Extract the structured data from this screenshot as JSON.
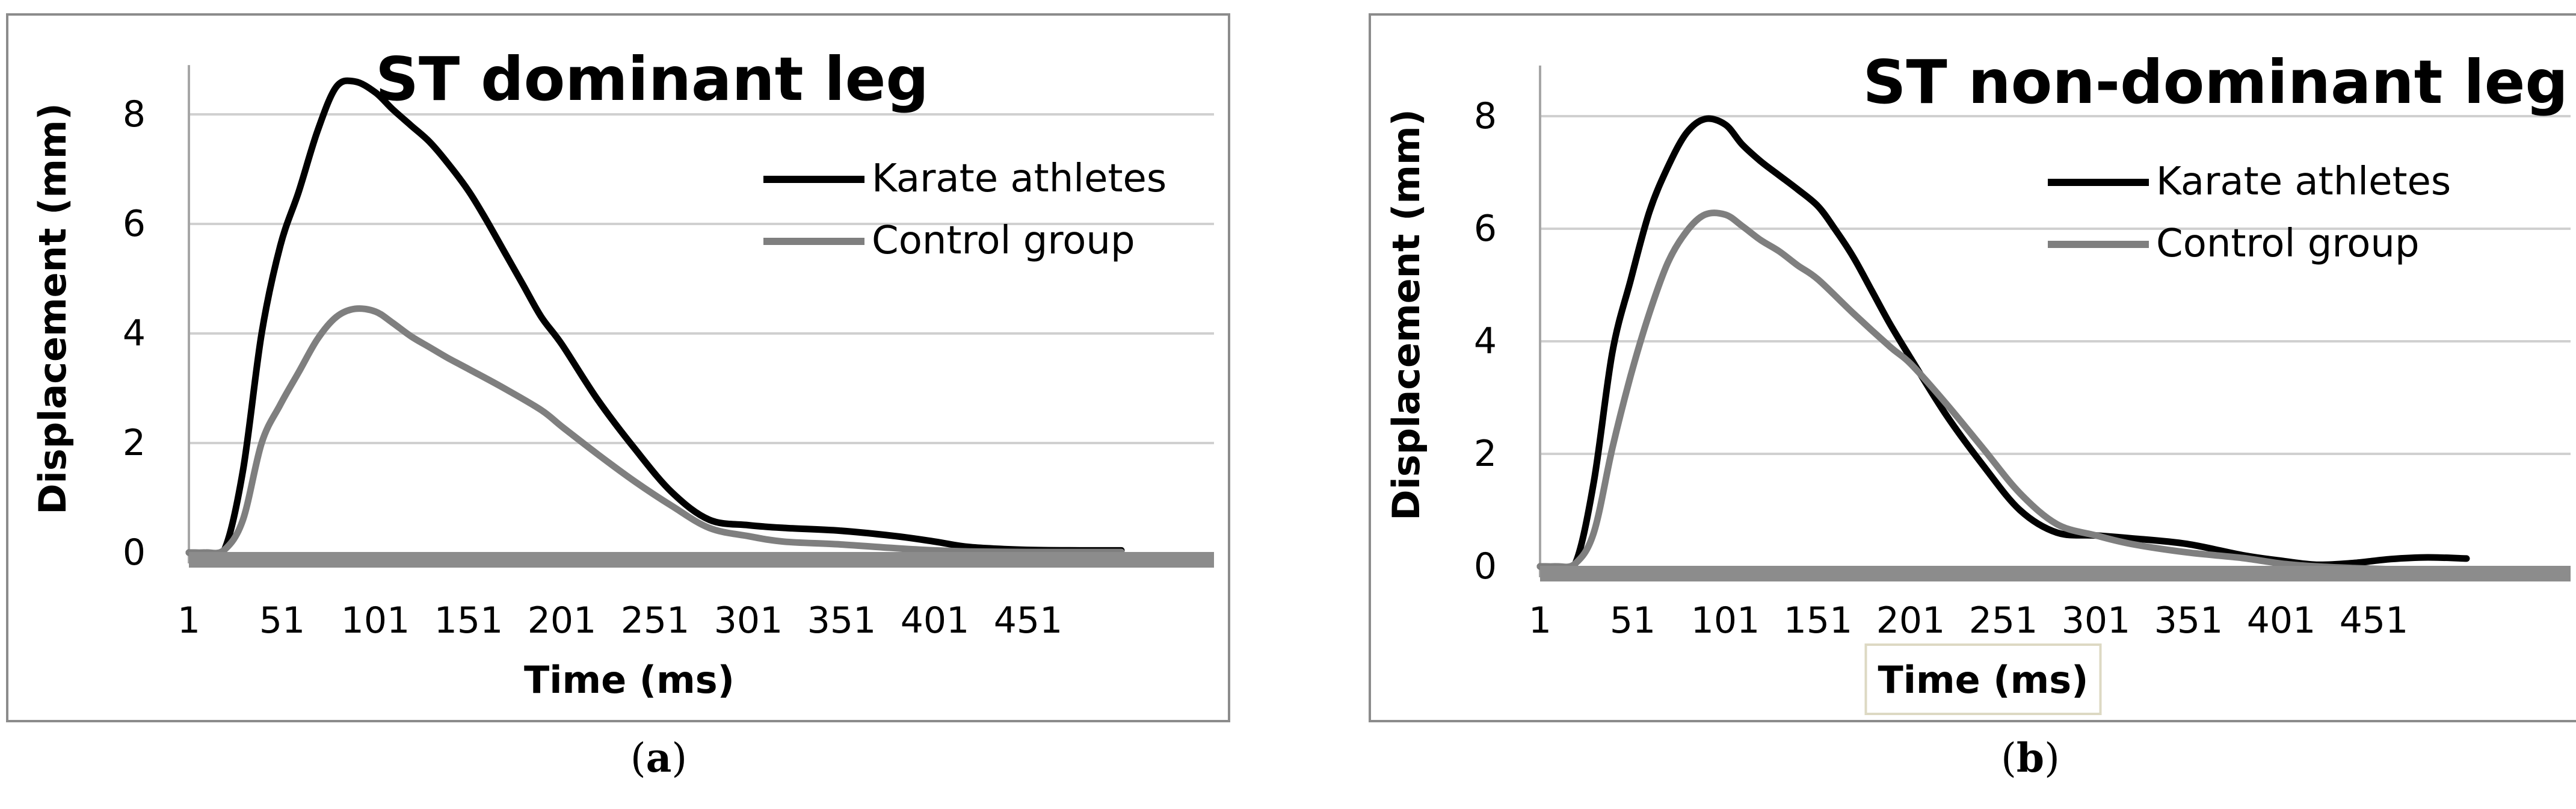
{
  "chart_data": [
    {
      "type": "line",
      "panel_label": "a",
      "title": "ST dominant leg",
      "xlabel": "Time (ms)",
      "ylabel": "Displacement (mm)",
      "ylim": [
        0,
        9
      ],
      "xlim": [
        1,
        501
      ],
      "yticks": [
        "0",
        "2",
        "4",
        "6",
        "8"
      ],
      "xticks": [
        "1",
        "51",
        "101",
        "151",
        "201",
        "251",
        "301",
        "351",
        "401",
        "451"
      ],
      "grid": true,
      "legend_position": "top-right",
      "colors": {
        "Karate athletes": "#000000",
        "Control group": "#7f7f7f",
        "baseline": "#8c8c8c"
      },
      "series": [
        {
          "name": "Karate athletes",
          "x": [
            1,
            10,
            20,
            30,
            40,
            50,
            60,
            70,
            80,
            90,
            101,
            110,
            120,
            130,
            140,
            151,
            160,
            170,
            180,
            190,
            201,
            220,
            240,
            260,
            280,
            301,
            320,
            350,
            380,
            401,
            420,
            450,
            480,
            501
          ],
          "y": [
            0,
            0,
            0.05,
            1.5,
            4.0,
            5.6,
            6.6,
            7.7,
            8.5,
            8.6,
            8.4,
            8.1,
            7.8,
            7.5,
            7.1,
            6.6,
            6.1,
            5.5,
            4.9,
            4.3,
            3.8,
            2.8,
            1.9,
            1.1,
            0.6,
            0.5,
            0.45,
            0.4,
            0.3,
            0.2,
            0.1,
            0.05,
            0.04,
            0.04
          ]
        },
        {
          "name": "Control group",
          "x": [
            1,
            10,
            20,
            30,
            40,
            50,
            60,
            70,
            80,
            90,
            101,
            110,
            120,
            130,
            140,
            151,
            170,
            190,
            201,
            220,
            240,
            260,
            280,
            301,
            320,
            350,
            380,
            401,
            420,
            450,
            480,
            501
          ],
          "y": [
            0,
            0,
            0.05,
            0.6,
            2.0,
            2.7,
            3.3,
            3.9,
            4.3,
            4.45,
            4.4,
            4.2,
            3.95,
            3.75,
            3.55,
            3.35,
            3.0,
            2.6,
            2.3,
            1.8,
            1.3,
            0.85,
            0.45,
            0.3,
            0.2,
            0.15,
            0.08,
            0.04,
            0.02,
            0.01,
            0.01,
            0.01
          ]
        }
      ]
    },
    {
      "type": "line",
      "panel_label": "b",
      "title": "ST non-dominant leg",
      "xlabel": "Time (ms)",
      "ylabel": "Displacement (mm)",
      "ylim": [
        0,
        9
      ],
      "xlim": [
        1,
        501
      ],
      "yticks": [
        "0",
        "2",
        "4",
        "6",
        "8"
      ],
      "xticks": [
        "1",
        "51",
        "101",
        "151",
        "201",
        "251",
        "301",
        "351",
        "401",
        "451"
      ],
      "grid": true,
      "legend_position": "top-right",
      "colors": {
        "Karate athletes": "#000000",
        "Control group": "#7f7f7f",
        "baseline": "#8c8c8c"
      },
      "series": [
        {
          "name": "Karate athletes",
          "x": [
            1,
            10,
            20,
            30,
            40,
            50,
            60,
            70,
            80,
            90,
            101,
            110,
            120,
            130,
            140,
            151,
            160,
            170,
            180,
            190,
            201,
            220,
            240,
            260,
            280,
            301,
            320,
            350,
            380,
            401,
            420,
            440,
            460,
            480,
            501
          ],
          "y": [
            0,
            0,
            0.05,
            1.5,
            3.8,
            5.1,
            6.3,
            7.1,
            7.7,
            7.95,
            7.85,
            7.5,
            7.2,
            6.95,
            6.7,
            6.4,
            6.0,
            5.5,
            4.9,
            4.3,
            3.7,
            2.7,
            1.8,
            1.0,
            0.6,
            0.55,
            0.5,
            0.4,
            0.2,
            0.1,
            0.03,
            0.06,
            0.13,
            0.16,
            0.14
          ]
        },
        {
          "name": "Control group",
          "x": [
            1,
            10,
            20,
            30,
            40,
            50,
            60,
            70,
            80,
            90,
            101,
            110,
            120,
            130,
            140,
            151,
            170,
            190,
            201,
            220,
            240,
            260,
            280,
            301,
            320,
            350,
            380,
            401,
            420,
            440,
            460,
            480,
            501
          ],
          "y": [
            0,
            0,
            0.05,
            0.6,
            2.1,
            3.4,
            4.5,
            5.4,
            5.95,
            6.25,
            6.25,
            6.05,
            5.8,
            5.6,
            5.35,
            5.1,
            4.5,
            3.9,
            3.6,
            2.9,
            2.1,
            1.3,
            0.75,
            0.55,
            0.4,
            0.25,
            0.15,
            0.05,
            0.0,
            -0.03,
            -0.05,
            -0.06,
            -0.06
          ]
        }
      ]
    }
  ]
}
